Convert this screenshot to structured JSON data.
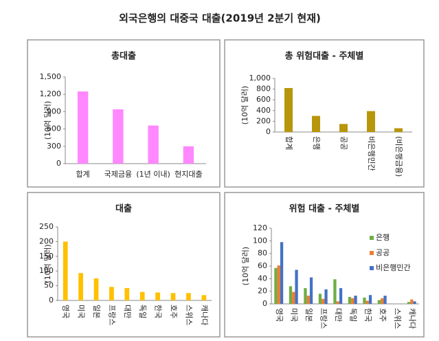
{
  "title": "외국은행의 대중국 대출(2019년 2분기 현재)",
  "chart_data": [
    {
      "type": "bar",
      "title": "총대출",
      "y_label": "(10억 달러)",
      "categories": [
        "합계",
        "국제금융",
        "(1년 이내)",
        "현지대출"
      ],
      "values": [
        1250,
        940,
        660,
        300
      ],
      "color": "#ff88ff",
      "ylim": [
        0,
        1500
      ],
      "yticks": [
        0,
        300,
        600,
        900,
        {
          "value": 1200,
          "label": "1,200"
        },
        {
          "value": 1500,
          "label": "1,500"
        }
      ]
    },
    {
      "type": "bar",
      "title": "총 위험대출 - 주체별",
      "y_label": "(10억 달러)",
      "categories": [
        "합계",
        "은행",
        "공공",
        "비은행민간",
        "(비은행금융)"
      ],
      "values": [
        820,
        300,
        150,
        390,
        70
      ],
      "color": "#b8960c",
      "ylim": [
        0,
        1000
      ],
      "yticks": [
        0,
        200,
        400,
        600,
        800,
        {
          "value": 1000,
          "label": "1,000"
        }
      ]
    },
    {
      "type": "bar",
      "title": "대출",
      "y_label": "(10억 달러)",
      "categories": [
        "영국",
        "미국",
        "일본",
        "프랑스",
        "대만",
        "독일",
        "한국",
        "호주",
        "스위스",
        "캐나다"
      ],
      "values": [
        200,
        93,
        75,
        46,
        42,
        29,
        27,
        25,
        25,
        18
      ],
      "color": "#ffc000",
      "ylim": [
        0,
        250
      ],
      "yticks": [
        0,
        50,
        100,
        150,
        200,
        250
      ]
    },
    {
      "type": "grouped_bar",
      "title": "위험 대출 - 주체별",
      "y_label": "(10억 달러)",
      "categories": [
        "영국",
        "미국",
        "일본",
        "프랑스",
        "대만",
        "독일",
        "한국",
        "호주",
        "스위스",
        "캐나다"
      ],
      "series": [
        {
          "name": "은행",
          "color": "#70ad47",
          "values": [
            57,
            28,
            25,
            16,
            39,
            11,
            10,
            6,
            0,
            3
          ]
        },
        {
          "name": "공공",
          "color": "#ed7d31",
          "values": [
            61,
            19,
            13,
            8,
            4,
            9,
            5,
            9,
            0,
            7
          ]
        },
        {
          "name": "비은행민간",
          "color": "#4472c4",
          "values": [
            98,
            54,
            42,
            23,
            25,
            13,
            14,
            13,
            0,
            4
          ]
        }
      ],
      "ylim": [
        0,
        120
      ],
      "yticks": [
        0,
        20,
        40,
        60,
        80,
        100,
        120
      ],
      "legend": "upper right"
    }
  ]
}
